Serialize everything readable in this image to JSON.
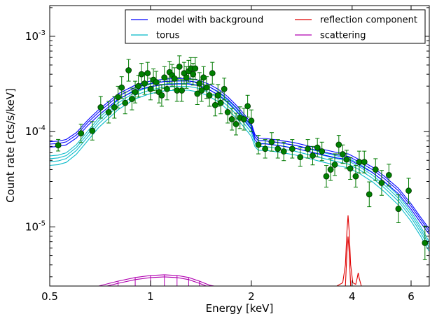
{
  "chart_data": {
    "type": "scatter",
    "xlabel": "Energy [keV]",
    "ylabel": "Count rate [cts/s/keV]",
    "xscale": "log",
    "yscale": "log",
    "xlim": [
      0.5,
      6.8
    ],
    "ylim": [
      2.4e-06,
      0.0021
    ],
    "grid": false,
    "legend_position": "top-right",
    "x_ticks": [
      {
        "value": 0.5,
        "label": "0.5"
      },
      {
        "value": 1,
        "label": "1"
      },
      {
        "value": 2,
        "label": "2"
      },
      {
        "value": 4,
        "label": "4"
      },
      {
        "value": 6,
        "label": "6"
      }
    ],
    "y_ticks": [
      {
        "value": 1e-05,
        "base": "10",
        "exp": "-5"
      },
      {
        "value": 0.0001,
        "base": "10",
        "exp": "-4"
      },
      {
        "value": 0.001,
        "base": "10",
        "exp": "-3"
      }
    ],
    "legend": [
      {
        "label": "model with background",
        "color": "#0000ff"
      },
      {
        "label": "reflection component",
        "color": "#e00000"
      },
      {
        "label": "torus",
        "color": "#00b8c8"
      },
      {
        "label": "scattering",
        "color": "#b000b0"
      }
    ],
    "series": [
      {
        "name": "data",
        "marker_color": "#007a00",
        "points": [
          [
            0.53,
            7.2e-05,
            0.15
          ],
          [
            0.62,
            9.6e-05,
            0.25
          ],
          [
            0.67,
            0.000102,
            0.25
          ],
          [
            0.71,
            0.00018,
            0.3
          ],
          [
            0.75,
            0.00016,
            0.3
          ],
          [
            0.78,
            0.00018,
            0.3
          ],
          [
            0.8,
            0.00023,
            0.3
          ],
          [
            0.82,
            0.00029,
            0.3
          ],
          [
            0.84,
            0.0002,
            0.3
          ],
          [
            0.86,
            0.00044,
            0.3
          ],
          [
            0.88,
            0.00022,
            0.3
          ],
          [
            0.9,
            0.00026,
            0.3
          ],
          [
            0.92,
            0.0003,
            0.3
          ],
          [
            0.94,
            0.0004,
            0.3
          ],
          [
            0.96,
            0.00032,
            0.3
          ],
          [
            0.98,
            0.00041,
            0.3
          ],
          [
            1.0,
            0.00028,
            0.3
          ],
          [
            1.02,
            0.00035,
            0.3
          ],
          [
            1.04,
            0.00033,
            0.3
          ],
          [
            1.06,
            0.00026,
            0.3
          ],
          [
            1.08,
            0.00024,
            0.3
          ],
          [
            1.1,
            0.00037,
            0.3
          ],
          [
            1.12,
            0.00028,
            0.3
          ],
          [
            1.14,
            0.00042,
            0.3
          ],
          [
            1.16,
            0.00039,
            0.3
          ],
          [
            1.18,
            0.00036,
            0.3
          ],
          [
            1.2,
            0.00027,
            0.3
          ],
          [
            1.22,
            0.00048,
            0.3
          ],
          [
            1.24,
            0.00027,
            0.3
          ],
          [
            1.26,
            0.00041,
            0.3
          ],
          [
            1.28,
            0.00037,
            0.3
          ],
          [
            1.3,
            0.00043,
            0.3
          ],
          [
            1.32,
            0.00046,
            0.3
          ],
          [
            1.34,
            0.0004,
            0.3
          ],
          [
            1.36,
            0.00046,
            0.3
          ],
          [
            1.38,
            0.00025,
            0.3
          ],
          [
            1.4,
            0.00032,
            0.3
          ],
          [
            1.42,
            0.00027,
            0.3
          ],
          [
            1.44,
            0.00037,
            0.3
          ],
          [
            1.47,
            0.00029,
            0.3
          ],
          [
            1.5,
            0.00024,
            0.3
          ],
          [
            1.53,
            0.00041,
            0.3
          ],
          [
            1.56,
            0.00019,
            0.3
          ],
          [
            1.59,
            0.00024,
            0.3
          ],
          [
            1.62,
            0.0002,
            0.3
          ],
          [
            1.66,
            0.00028,
            0.3
          ],
          [
            1.7,
            0.00016,
            0.3
          ],
          [
            1.75,
            0.000135,
            0.3
          ],
          [
            1.8,
            0.00012,
            0.3
          ],
          [
            1.85,
            0.00014,
            0.3
          ],
          [
            1.9,
            0.000135,
            0.3
          ],
          [
            1.95,
            0.000185,
            0.3
          ],
          [
            2.0,
            0.00013,
            0.3
          ],
          [
            2.1,
            7.3e-05,
            0.25
          ],
          [
            2.2,
            6.6e-05,
            0.25
          ],
          [
            2.3,
            7.8e-05,
            0.25
          ],
          [
            2.4,
            6.6e-05,
            0.25
          ],
          [
            2.5,
            6.2e-05,
            0.25
          ],
          [
            2.65,
            6.6e-05,
            0.25
          ],
          [
            2.8,
            5.4e-05,
            0.25
          ],
          [
            2.95,
            6.6e-05,
            0.25
          ],
          [
            3.05,
            5.6e-05,
            0.25
          ],
          [
            3.15,
            6.8e-05,
            0.25
          ],
          [
            3.25,
            6.2e-05,
            0.25
          ],
          [
            3.35,
            3.4e-05,
            0.3
          ],
          [
            3.45,
            4e-05,
            0.3
          ],
          [
            3.55,
            4.5e-05,
            0.3
          ],
          [
            3.65,
            7.3e-05,
            0.25
          ],
          [
            3.75,
            5.8e-05,
            0.25
          ],
          [
            3.85,
            5.1e-05,
            0.25
          ],
          [
            3.95,
            4.1e-05,
            0.3
          ],
          [
            4.1,
            3.4e-05,
            0.3
          ],
          [
            4.2,
            4.8e-05,
            0.3
          ],
          [
            4.35,
            4.8e-05,
            0.3
          ],
          [
            4.5,
            2.2e-05,
            0.35
          ],
          [
            4.7,
            4e-05,
            0.3
          ],
          [
            4.9,
            2.9e-05,
            0.35
          ],
          [
            5.15,
            3.5e-05,
            0.3
          ],
          [
            5.5,
            1.55e-05,
            0.4
          ],
          [
            5.9,
            2.4e-05,
            0.35
          ],
          [
            6.6,
            6.8e-06,
            0.5
          ]
        ]
      },
      {
        "name": "model with background",
        "color": "#0000ff",
        "points": [
          [
            0.5,
            7.4e-05
          ],
          [
            0.53,
            7.5e-05
          ],
          [
            0.56,
            7.8e-05
          ],
          [
            0.6,
            9.2e-05
          ],
          [
            0.65,
            0.000125
          ],
          [
            0.7,
            0.00016
          ],
          [
            0.8,
            0.000235
          ],
          [
            0.9,
            0.00029
          ],
          [
            1.0,
            0.00032
          ],
          [
            1.1,
            0.000335
          ],
          [
            1.2,
            0.00034
          ],
          [
            1.3,
            0.00034
          ],
          [
            1.4,
            0.000325
          ],
          [
            1.5,
            0.000295
          ],
          [
            1.6,
            0.00026
          ],
          [
            1.7,
            0.00022
          ],
          [
            1.8,
            0.00018
          ],
          [
            1.9,
            0.000145
          ],
          [
            2.0,
            0.000115
          ],
          [
            2.05,
            8.8e-05
          ],
          [
            2.1,
            8e-05
          ],
          [
            2.2,
            8e-05
          ],
          [
            2.4,
            7.7e-05
          ],
          [
            2.7,
            7.2e-05
          ],
          [
            3.0,
            6.6e-05
          ],
          [
            3.3,
            6.1e-05
          ],
          [
            3.6,
            5.7e-05
          ],
          [
            3.9,
            5.5e-05
          ],
          [
            4.2,
            4.8e-05
          ],
          [
            4.6,
            4e-05
          ],
          [
            5.0,
            3.2e-05
          ],
          [
            5.5,
            2.4e-05
          ],
          [
            6.0,
            1.65e-05
          ],
          [
            6.4,
            1.2e-05
          ],
          [
            6.8,
            9e-06
          ]
        ]
      },
      {
        "name": "torus",
        "color": "#00b8c8",
        "points": [
          [
            0.5,
            5.2e-05
          ],
          [
            0.53,
            5.3e-05
          ],
          [
            0.56,
            5.6e-05
          ],
          [
            0.6,
            6.8e-05
          ],
          [
            0.65,
            9.5e-05
          ],
          [
            0.7,
            0.00013
          ],
          [
            0.8,
            0.0002
          ],
          [
            0.9,
            0.00026
          ],
          [
            1.0,
            0.000295
          ],
          [
            1.1,
            0.000315
          ],
          [
            1.2,
            0.00032
          ],
          [
            1.3,
            0.00032
          ],
          [
            1.4,
            0.000305
          ],
          [
            1.5,
            0.000275
          ],
          [
            1.6,
            0.00024
          ],
          [
            1.7,
            0.0002
          ],
          [
            1.8,
            0.000165
          ],
          [
            1.9,
            0.000132
          ],
          [
            2.0,
            0.000105
          ],
          [
            2.05,
            8.2e-05
          ],
          [
            2.1,
            7.5e-05
          ],
          [
            2.2,
            7.5e-05
          ],
          [
            2.4,
            7.2e-05
          ],
          [
            2.7,
            6.7e-05
          ],
          [
            3.0,
            6.1e-05
          ],
          [
            3.3,
            5.6e-05
          ],
          [
            3.6,
            5.2e-05
          ],
          [
            3.9,
            4.9e-05
          ],
          [
            4.2,
            4.3e-05
          ],
          [
            4.6,
            3.5e-05
          ],
          [
            5.0,
            2.75e-05
          ],
          [
            5.5,
            2e-05
          ],
          [
            6.0,
            1.35e-05
          ],
          [
            6.4,
            9.5e-06
          ],
          [
            6.8,
            6.5e-06
          ]
        ]
      },
      {
        "name": "reflection component",
        "color": "#e00000",
        "points": [
          [
            3.6,
            2.4e-06
          ],
          [
            3.75,
            2.6e-06
          ],
          [
            3.82,
            4e-06
          ],
          [
            3.86,
            9e-06
          ],
          [
            3.89,
            1.32e-05
          ],
          [
            3.92,
            9e-06
          ],
          [
            3.96,
            4e-06
          ],
          [
            4.02,
            2.6e-06
          ],
          [
            4.1,
            2.5e-06
          ],
          [
            4.14,
            2.9e-06
          ],
          [
            4.17,
            3.3e-06
          ],
          [
            4.2,
            2.9e-06
          ],
          [
            4.26,
            2.4e-06
          ]
        ]
      },
      {
        "name": "scattering",
        "color": "#b000b0",
        "points": [
          [
            0.7,
            2.4e-06
          ],
          [
            0.8,
            2.7e-06
          ],
          [
            0.9,
            2.95e-06
          ],
          [
            1.0,
            3.1e-06
          ],
          [
            1.1,
            3.15e-06
          ],
          [
            1.2,
            3.1e-06
          ],
          [
            1.3,
            2.95e-06
          ],
          [
            1.4,
            2.7e-06
          ],
          [
            1.5,
            2.45e-06
          ],
          [
            1.55,
            2.4e-06
          ]
        ]
      }
    ]
  }
}
